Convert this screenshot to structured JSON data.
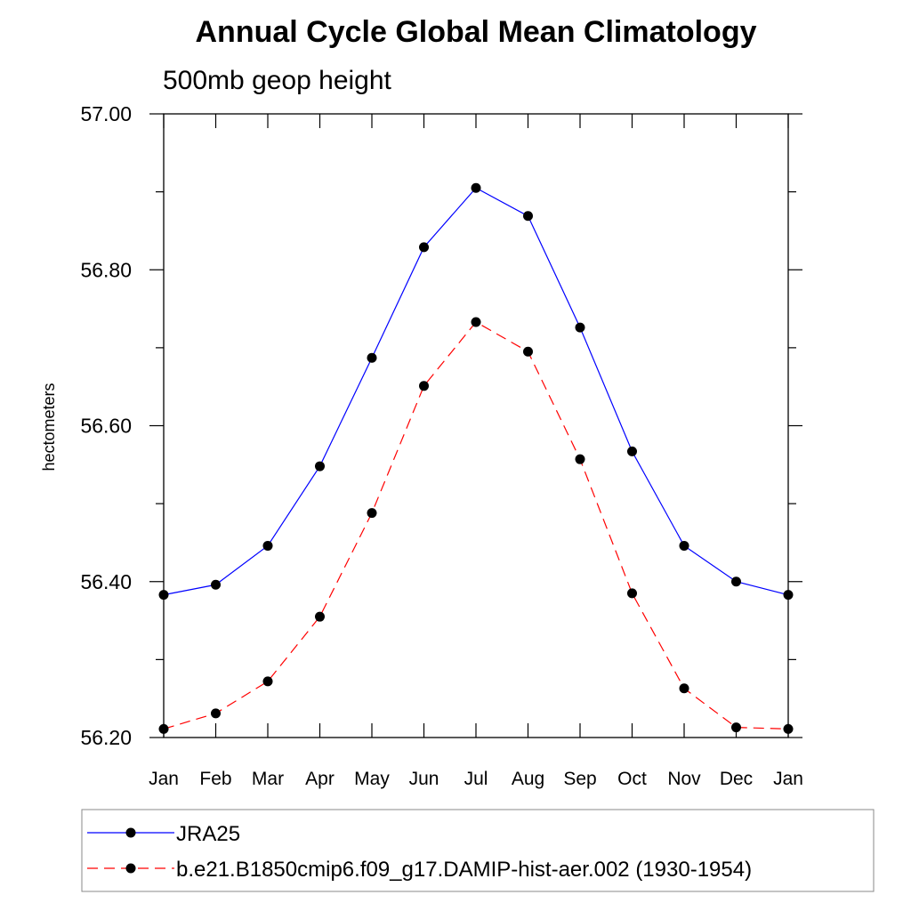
{
  "chart_data": {
    "type": "line",
    "title": "Annual Cycle Global Mean Climatology",
    "subtitle": "500mb geop height",
    "xlabel": "",
    "ylabel": "hectometers",
    "categories": [
      "Jan",
      "Feb",
      "Mar",
      "Apr",
      "May",
      "Jun",
      "Jul",
      "Aug",
      "Sep",
      "Oct",
      "Nov",
      "Dec",
      "Jan"
    ],
    "ylim": [
      56.2,
      57.0
    ],
    "yticks": [
      "56.20",
      "56.40",
      "56.60",
      "56.80",
      "57.00"
    ],
    "ytick_values": [
      56.2,
      56.4,
      56.6,
      56.8,
      57.0
    ],
    "grid": false,
    "legend_position": "bottom",
    "series": [
      {
        "name": "JRA25",
        "color": "#0000ff",
        "dash": "solid",
        "values": [
          56.383,
          56.396,
          56.446,
          56.548,
          56.687,
          56.829,
          56.905,
          56.869,
          56.726,
          56.567,
          56.446,
          56.4,
          56.383
        ]
      },
      {
        "name": "b.e21.B1850cmip6.f09_g17.DAMIP-hist-aer.002 (1930-1954)",
        "color": "#ff0000",
        "dash": "dashed",
        "values": [
          56.211,
          56.231,
          56.272,
          56.355,
          56.488,
          56.651,
          56.733,
          56.695,
          56.557,
          56.385,
          56.263,
          56.213,
          56.211
        ]
      }
    ]
  }
}
